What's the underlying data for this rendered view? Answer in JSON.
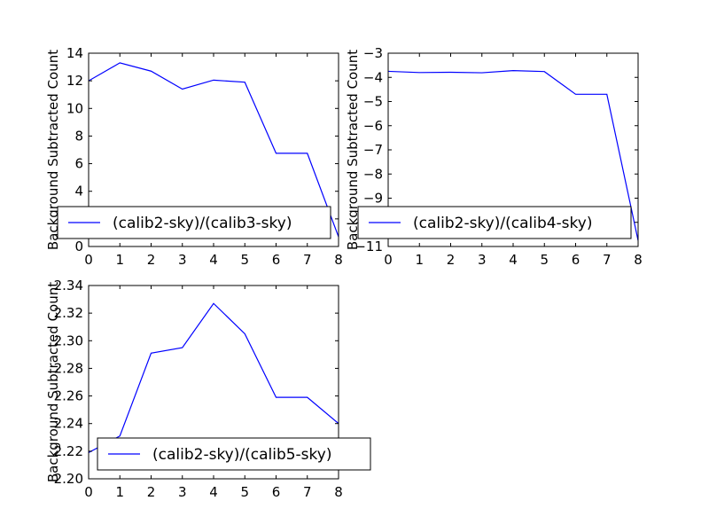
{
  "chart_data": [
    {
      "type": "line",
      "ylabel": "Background Subtracted Count",
      "xlim": [
        0,
        8
      ],
      "ylim": [
        0,
        14
      ],
      "xticks": [
        "0",
        "1",
        "2",
        "3",
        "4",
        "5",
        "6",
        "7",
        "8"
      ],
      "yticks": [
        "0",
        "2",
        "4",
        "6",
        "8",
        "10",
        "12",
        "14"
      ],
      "legend_position": "lower-center",
      "series": [
        {
          "name": "(calib2-sky)/(calib3-sky)",
          "color": "#0000ff",
          "x": [
            0,
            1,
            2,
            3,
            4,
            5,
            6,
            7,
            8
          ],
          "y": [
            12.0,
            13.3,
            12.7,
            11.4,
            12.05,
            11.9,
            6.75,
            6.75,
            0.7
          ]
        }
      ]
    },
    {
      "type": "line",
      "ylabel": "Background Subtracted Count",
      "xlim": [
        0,
        8
      ],
      "ylim": [
        -11,
        -3
      ],
      "xticks": [
        "0",
        "1",
        "2",
        "3",
        "4",
        "5",
        "6",
        "7",
        "8"
      ],
      "yticks": [
        "−3",
        "−4",
        "−5",
        "−6",
        "−7",
        "−8",
        "−9",
        "−10",
        "−11"
      ],
      "legend_position": "lower-center",
      "series": [
        {
          "name": "(calib2-sky)/(calib4-sky)",
          "color": "#0000ff",
          "x": [
            0,
            1,
            2,
            3,
            4,
            5,
            6,
            7,
            8
          ],
          "y": [
            -3.75,
            -3.8,
            -3.79,
            -3.81,
            -3.72,
            -3.76,
            -4.7,
            -4.7,
            -10.75
          ]
        }
      ]
    },
    {
      "type": "line",
      "ylabel": "Background Subtracted Count",
      "xlim": [
        0,
        8
      ],
      "ylim": [
        2.2,
        2.34
      ],
      "xticks": [
        "0",
        "1",
        "2",
        "3",
        "4",
        "5",
        "6",
        "7",
        "8"
      ],
      "yticks": [
        "2.20",
        "2.22",
        "2.24",
        "2.26",
        "2.28",
        "2.30",
        "2.32",
        "2.34"
      ],
      "legend_position": "lower-center",
      "series": [
        {
          "name": "(calib2-sky)/(calib5-sky)",
          "color": "#0000ff",
          "x": [
            0,
            1,
            2,
            3,
            4,
            5,
            6,
            7,
            8
          ],
          "y": [
            2.219,
            2.231,
            2.291,
            2.295,
            2.327,
            2.305,
            2.259,
            2.259,
            2.24
          ]
        }
      ]
    }
  ]
}
